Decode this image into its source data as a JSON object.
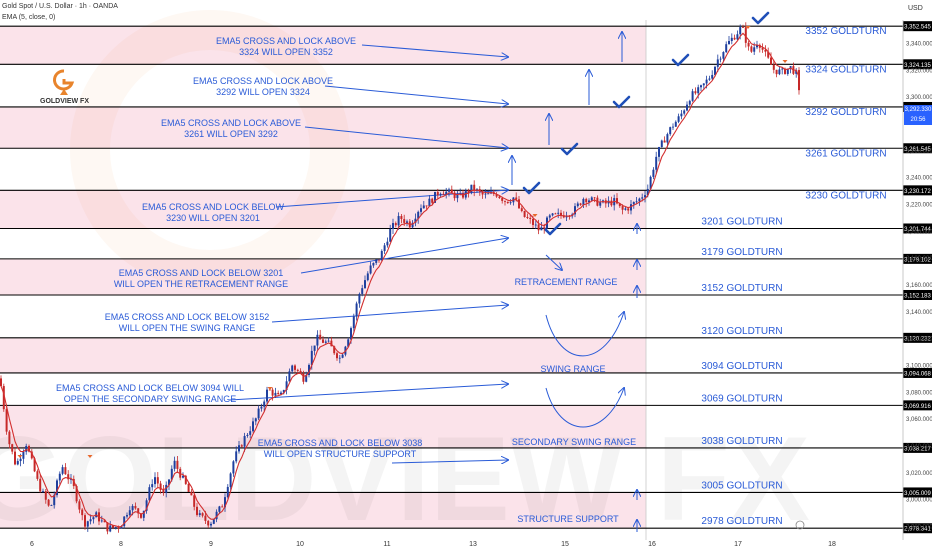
{
  "header": {
    "symbol_line": "Gold Spot / U.S. Dollar · 1h · OANDA",
    "indicator_line": "EMA (5, close, 0)",
    "currency": "USD"
  },
  "logo": {
    "text": "GOLDVIEW FX",
    "watermark": "GOLDVIEW FX"
  },
  "colors": {
    "turn_label": "#2a5bd7",
    "arrow": "#2a5bd7",
    "band_fill": "#fbe3ea",
    "bull": "#1e3f9e",
    "bear": "#c62828",
    "ema": "#d32f2f",
    "level_line": "#000000"
  },
  "price_tag": {
    "value": "3,292.330",
    "time": "20:56"
  },
  "chart_data": {
    "type": "candlestick",
    "ylim": [
      2970,
      3360
    ],
    "x_ticks": [
      "6",
      "8",
      "9",
      "10",
      "11",
      "13",
      "15",
      "16",
      "17",
      "18"
    ],
    "y_ticks": [
      "3,340.000",
      "3,320.000",
      "3,300.000",
      "3,260.000",
      "3,240.000",
      "3,220.000",
      "3,200.000",
      "3,180.000",
      "3,160.000",
      "3,140.000",
      "3,120.000",
      "3,100.000",
      "3,080.000",
      "3,060.000",
      "3,040.000",
      "3,020.000",
      "3,000.000",
      "2,980.000"
    ],
    "levels": [
      {
        "value": 3352.545,
        "tag": "3,352.545",
        "label": "3352 GOLDTURN"
      },
      {
        "value": 3324.135,
        "tag": "3,324.135",
        "label": "3324 GOLDTURN"
      },
      {
        "value": 3292.311,
        "tag": "3,292.311",
        "label": "3292 GOLDTURN"
      },
      {
        "value": 3261.545,
        "tag": "3,261.545",
        "label": "3261 GOLDTURN"
      },
      {
        "value": 3230.172,
        "tag": "3,230.172",
        "label": "3230 GOLDTURN"
      },
      {
        "value": 3201.744,
        "tag": "3,201.744",
        "label": "3201 GOLDTURN"
      },
      {
        "value": 3179.102,
        "tag": "3,179.102",
        "label": "3179 GOLDTURN"
      },
      {
        "value": 3152.183,
        "tag": "3,152.183",
        "label": "3152 GOLDTURN"
      },
      {
        "value": 3120.232,
        "tag": "3,120.232",
        "label": "3120 GOLDTURN"
      },
      {
        "value": 3094.068,
        "tag": "3,094.068",
        "label": "3094 GOLDTURN"
      },
      {
        "value": 3069.916,
        "tag": "3,069.916",
        "label": "3069 GOLDTURN"
      },
      {
        "value": 3038.217,
        "tag": "3,038.217",
        "label": "3038 GOLDTURN"
      },
      {
        "value": 3005.009,
        "tag": "3,005.009",
        "label": "3005 GOLDTURN"
      },
      {
        "value": 2978.341,
        "tag": "2,978.341",
        "label": "2978 GOLDTURN"
      }
    ],
    "annotations": [
      {
        "lines": [
          "EMA5 CROSS AND LOCK ABOVE",
          "3324 WILL OPEN 3352"
        ]
      },
      {
        "lines": [
          "EMA5 CROSS AND LOCK ABOVE",
          "3292 WILL OPEN 3324"
        ]
      },
      {
        "lines": [
          "EMA5 CROSS AND LOCK ABOVE",
          "3261 WILL OPEN 3292"
        ]
      },
      {
        "lines": [
          "EMA5 CROSS AND LOCK BELOW",
          "3230 WILL OPEN 3201"
        ]
      },
      {
        "lines": [
          "EMA5 CROSS AND LOCK BELOW 3201",
          "WILL OPEN THE RETRACEMENT RANGE"
        ]
      },
      {
        "lines": [
          "EMA5 CROSS AND LOCK BELOW 3152",
          "WILL OPEN THE SWING RANGE"
        ]
      },
      {
        "lines": [
          "EMA5 CROSS AND LOCK BELOW 3094 WILL",
          "OPEN THE SECONDARY SWING RANGE"
        ]
      },
      {
        "lines": [
          "EMA5 CROSS AND LOCK BELOW 3038",
          "WILL OPEN STRUCTURE SUPPORT"
        ]
      }
    ],
    "ranges": [
      "RETRACEMENT RANGE",
      "SWING RANGE",
      "SECONDARY SWING RANGE",
      "STRUCTURE SUPPORT"
    ],
    "path": [
      [
        0,
        3090
      ],
      [
        8,
        3045
      ],
      [
        16,
        3025
      ],
      [
        26,
        3042
      ],
      [
        38,
        3012
      ],
      [
        50,
        2992
      ],
      [
        62,
        3025
      ],
      [
        74,
        3008
      ],
      [
        84,
        2982
      ],
      [
        96,
        2988
      ],
      [
        108,
        2978
      ],
      [
        120,
        2980
      ],
      [
        130,
        2995
      ],
      [
        142,
        2988
      ],
      [
        154,
        3018
      ],
      [
        164,
        3002
      ],
      [
        174,
        3028
      ],
      [
        186,
        3010
      ],
      [
        198,
        2988
      ],
      [
        210,
        2982
      ],
      [
        222,
        2995
      ],
      [
        234,
        3030
      ],
      [
        244,
        3045
      ],
      [
        256,
        3060
      ],
      [
        268,
        3082
      ],
      [
        280,
        3075
      ],
      [
        292,
        3100
      ],
      [
        304,
        3090
      ],
      [
        316,
        3120
      ],
      [
        328,
        3116
      ],
      [
        340,
        3105
      ],
      [
        350,
        3125
      ],
      [
        360,
        3155
      ],
      [
        370,
        3172
      ],
      [
        380,
        3180
      ],
      [
        390,
        3200
      ],
      [
        400,
        3210
      ],
      [
        410,
        3205
      ],
      [
        420,
        3218
      ],
      [
        430,
        3222
      ],
      [
        440,
        3230
      ],
      [
        450,
        3228
      ],
      [
        460,
        3225
      ],
      [
        472,
        3232
      ],
      [
        484,
        3226
      ],
      [
        496,
        3228
      ],
      [
        506,
        3222
      ],
      [
        514,
        3225
      ],
      [
        522,
        3212
      ],
      [
        532,
        3206
      ],
      [
        540,
        3200
      ],
      [
        550,
        3210
      ],
      [
        562,
        3212
      ],
      [
        574,
        3215
      ],
      [
        584,
        3225
      ],
      [
        594,
        3222
      ],
      [
        604,
        3220
      ],
      [
        614,
        3222
      ],
      [
        622,
        3215
      ],
      [
        630,
        3218
      ],
      [
        640,
        3224
      ],
      [
        648,
        3232
      ],
      [
        656,
        3255
      ],
      [
        664,
        3268
      ],
      [
        672,
        3278
      ],
      [
        680,
        3285
      ],
      [
        690,
        3300
      ],
      [
        700,
        3305
      ],
      [
        710,
        3315
      ],
      [
        718,
        3328
      ],
      [
        726,
        3338
      ],
      [
        734,
        3345
      ],
      [
        742,
        3352
      ],
      [
        750,
        3332
      ],
      [
        758,
        3342
      ],
      [
        766,
        3330
      ],
      [
        774,
        3320
      ],
      [
        782,
        3318
      ],
      [
        790,
        3322
      ],
      [
        796,
        3318
      ],
      [
        801,
        3292
      ]
    ]
  }
}
